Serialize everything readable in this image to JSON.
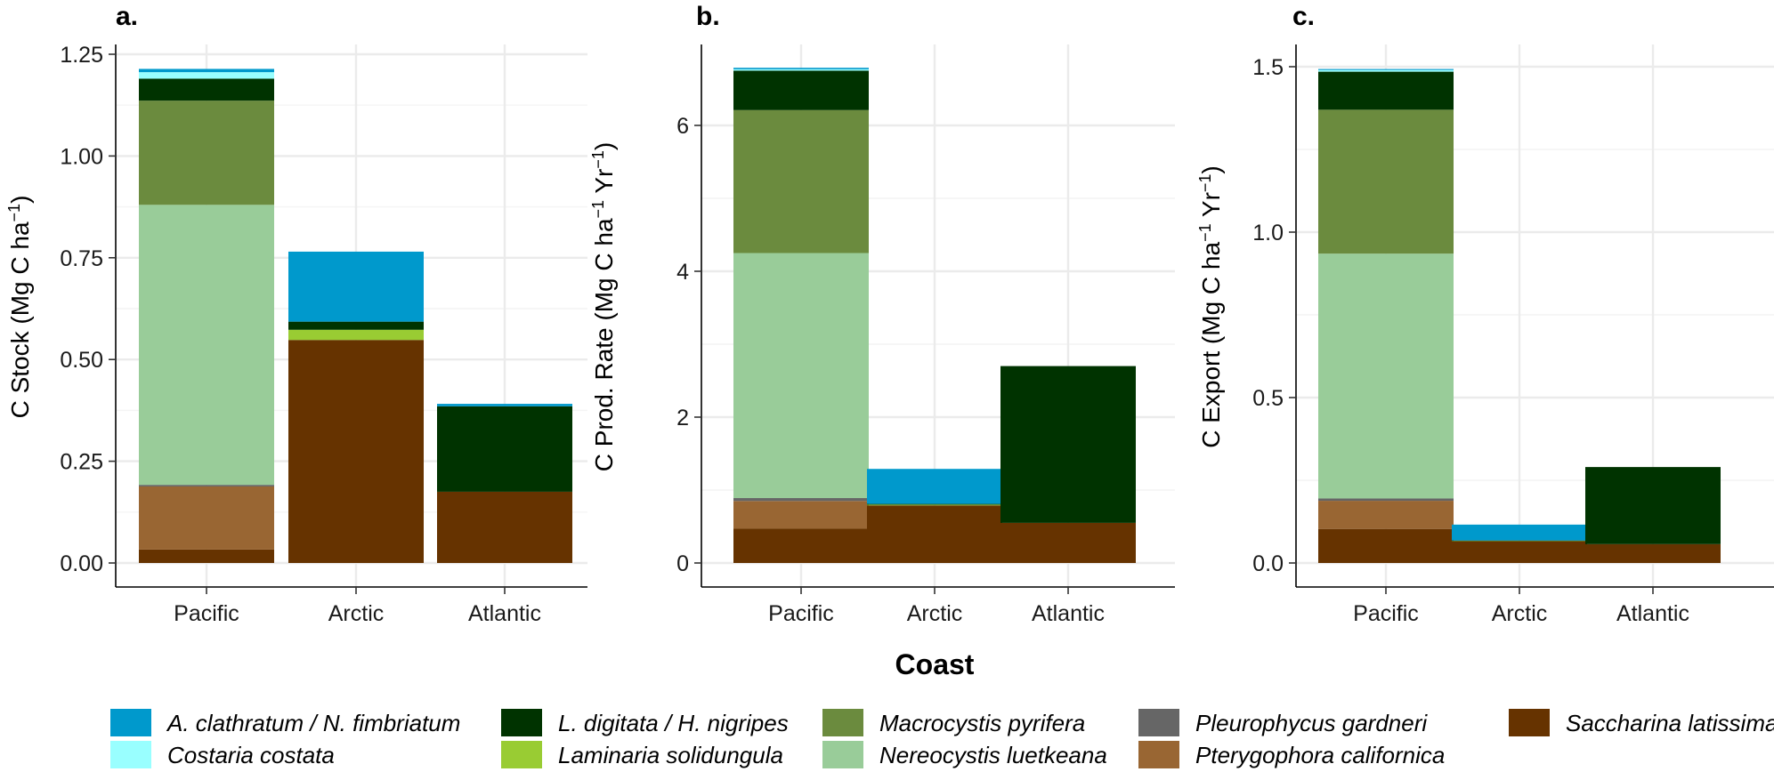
{
  "chart_data": [
    {
      "panel": "a.",
      "type": "bar",
      "stacked": true,
      "ylabel": "C Stock (Mg C ha",
      "ylabel_sup": "−1",
      "ylabel_tail": ")",
      "ylim": [
        0,
        1.27
      ],
      "yticks": [
        0.0,
        0.25,
        0.5,
        0.75,
        1.0,
        1.25
      ],
      "ytick_labels": [
        "0.00",
        "0.25",
        "0.50",
        "0.75",
        "1.00",
        "1.25"
      ],
      "categories": [
        "Pacific",
        "Arctic",
        "Atlantic"
      ],
      "series": [
        {
          "name": "Saccharina latissima",
          "values": [
            0.033,
            0.548,
            0.175
          ]
        },
        {
          "name": "Pterygophora californica",
          "values": [
            0.155,
            0,
            0
          ]
        },
        {
          "name": "Pleurophycus gardneri",
          "values": [
            0.004,
            0,
            0
          ]
        },
        {
          "name": "Nereocystis luetkeana",
          "values": [
            0.688,
            0,
            0
          ]
        },
        {
          "name": "Macrocystis pyrifera",
          "values": [
            0.256,
            0,
            0
          ]
        },
        {
          "name": "Laminaria solidungula",
          "values": [
            0,
            0.025,
            0
          ]
        },
        {
          "name": "L. digitata / H. nigripes",
          "values": [
            0.054,
            0.02,
            0.21
          ]
        },
        {
          "name": "Costaria costata",
          "values": [
            0.016,
            0,
            0
          ]
        },
        {
          "name": "A. clathratum / N. fimbriatum",
          "values": [
            0.008,
            0.172,
            0.006
          ]
        }
      ]
    },
    {
      "panel": "b.",
      "type": "bar",
      "stacked": true,
      "ylabel": "C Prod. Rate (Mg C ha",
      "ylabel_sup": "−1",
      "ylabel_mid": " Yr",
      "ylabel_sup2": "−1",
      "ylabel_tail": ")",
      "ylim": [
        0,
        7.05
      ],
      "yticks": [
        0,
        2,
        4,
        6
      ],
      "ytick_labels": [
        "0",
        "2",
        "4",
        "6"
      ],
      "categories": [
        "Pacific",
        "Arctic",
        "Atlantic"
      ],
      "series": [
        {
          "name": "Saccharina latissima",
          "values": [
            0.47,
            0.79,
            0.55
          ]
        },
        {
          "name": "Pterygophora californica",
          "values": [
            0.38,
            0,
            0
          ]
        },
        {
          "name": "Pleurophycus gardneri",
          "values": [
            0.04,
            0,
            0
          ]
        },
        {
          "name": "Nereocystis luetkeana",
          "values": [
            3.36,
            0,
            0
          ]
        },
        {
          "name": "Macrocystis pyrifera",
          "values": [
            1.96,
            0,
            0
          ]
        },
        {
          "name": "Laminaria solidungula",
          "values": [
            0,
            0.01,
            0
          ]
        },
        {
          "name": "L. digitata / H. nigripes",
          "values": [
            0.54,
            0.01,
            2.15
          ]
        },
        {
          "name": "Costaria costata",
          "values": [
            0.02,
            0,
            0
          ]
        },
        {
          "name": "A. clathratum / N. fimbriatum",
          "values": [
            0.02,
            0.48,
            0
          ]
        }
      ]
    },
    {
      "panel": "c.",
      "type": "bar",
      "stacked": true,
      "ylabel": "C Export (Mg C ha",
      "ylabel_sup": "−1",
      "ylabel_mid": " Yr",
      "ylabel_sup2": "−1",
      "ylabel_tail": ")",
      "ylim": [
        0,
        1.56
      ],
      "yticks": [
        0.0,
        0.5,
        1.0,
        1.5
      ],
      "ytick_labels": [
        "0.0",
        "0.5",
        "1.0",
        "1.5"
      ],
      "categories": [
        "Pacific",
        "Arctic",
        "Atlantic"
      ],
      "series": [
        {
          "name": "Saccharina latissima",
          "values": [
            0.103,
            0.066,
            0.057
          ]
        },
        {
          "name": "Pterygophora californica",
          "values": [
            0.085,
            0,
            0
          ]
        },
        {
          "name": "Pleurophycus gardneri",
          "values": [
            0.007,
            0,
            0
          ]
        },
        {
          "name": "Nereocystis luetkeana",
          "values": [
            0.74,
            0,
            0
          ]
        },
        {
          "name": "Macrocystis pyrifera",
          "values": [
            0.435,
            0,
            0
          ]
        },
        {
          "name": "Laminaria solidungula",
          "values": [
            0,
            0.001,
            0
          ]
        },
        {
          "name": "L. digitata / H. nigripes",
          "values": [
            0.115,
            0.001,
            0.233
          ]
        },
        {
          "name": "Costaria costata",
          "values": [
            0.005,
            0,
            0
          ]
        },
        {
          "name": "A. clathratum / N. fimbriatum",
          "values": [
            0.003,
            0.048,
            0
          ]
        }
      ]
    }
  ],
  "xlabel": "Coast",
  "legend": {
    "placement": "bottom",
    "items": [
      {
        "name": "A. clathratum / N. fimbriatum",
        "color": "#0099CC"
      },
      {
        "name": "Costaria costata",
        "color": "#99FFFF"
      },
      {
        "name": "L. digitata / H. nigripes",
        "color": "#003300"
      },
      {
        "name": "Laminaria solidungula",
        "color": "#99CC33"
      },
      {
        "name": "Macrocystis pyrifera",
        "color": "#6B8B3E"
      },
      {
        "name": "Nereocystis luetkeana",
        "color": "#99CC99"
      },
      {
        "name": "Pleurophycus gardneri",
        "color": "#666666"
      },
      {
        "name": "Pterygophora californica",
        "color": "#996633"
      },
      {
        "name": "Saccharina latissima",
        "color": "#663300"
      }
    ]
  }
}
